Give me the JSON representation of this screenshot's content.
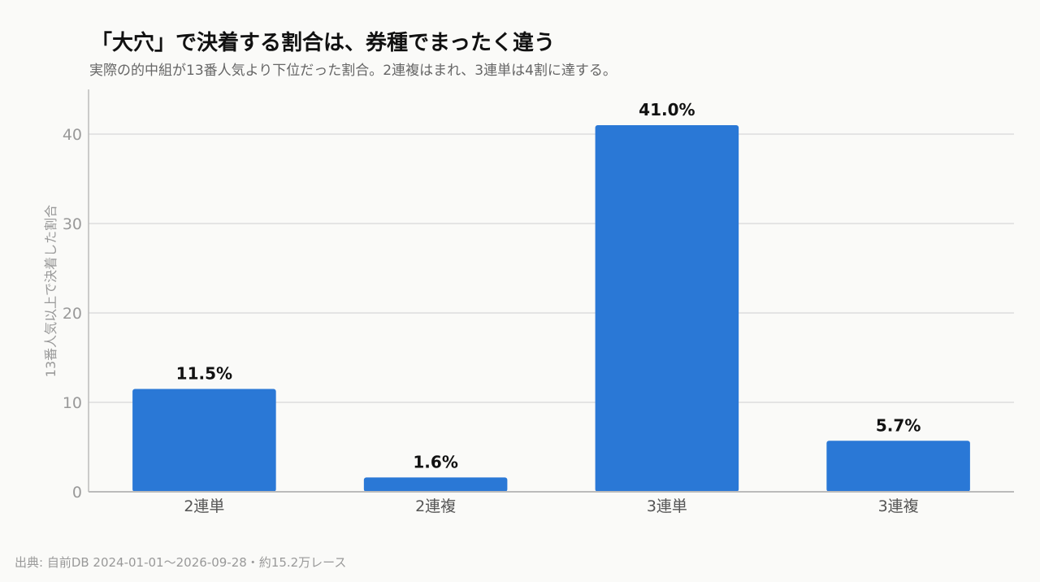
{
  "title": "「大穴」で決着する割合は、券種でまったく違う",
  "subtitle": "実際の的中組が13番人気より下位だった割合。2連複はまれ、3連単は4割に達する。",
  "source": "出典: 自前DB 2024-01-01〜2026-09-28・約15.2万レース",
  "colors": {
    "bar": "#2a78d6",
    "grid": "#dddddd",
    "axis": "#bbbbbb"
  },
  "chart_data": {
    "type": "bar",
    "categories": [
      "2連単",
      "2連複",
      "3連単",
      "3連複"
    ],
    "values": [
      11.5,
      1.6,
      41.0,
      5.7
    ],
    "data_labels": [
      "11.5%",
      "1.6%",
      "41.0%",
      "5.7%"
    ],
    "ylabel": "13番人気以上で決着した割合",
    "xlabel": "",
    "ylim": [
      0,
      45
    ],
    "yticks": [
      0,
      10,
      20,
      30,
      40
    ],
    "grid": true,
    "legend": "none"
  }
}
